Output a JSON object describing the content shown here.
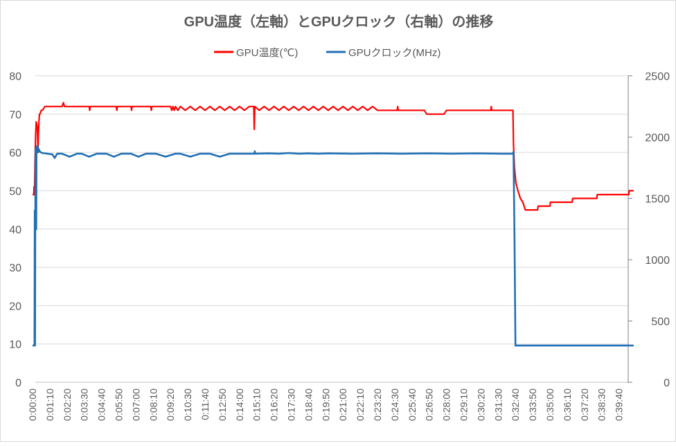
{
  "chart_data": {
    "type": "line",
    "title": "GPU温度（左軸）とGPUクロック（右軸）の推移",
    "legend_position": "top",
    "grid": true,
    "y_left": {
      "min": 0,
      "max": 80,
      "ticks": [
        0,
        10,
        20,
        30,
        40,
        50,
        60,
        70,
        80
      ]
    },
    "y_right": {
      "min": 0,
      "max": 2500,
      "ticks": [
        0,
        500,
        1000,
        1500,
        2000,
        2500
      ]
    },
    "x_range_seconds": [
      0,
      2440
    ],
    "x_tick_labels": [
      "0:00:00",
      "0:01:10",
      "0:02:20",
      "0:03:30",
      "0:04:40",
      "0:05:50",
      "0:07:00",
      "0:08:10",
      "0:09:20",
      "0:10:30",
      "0:11:40",
      "0:12:50",
      "0:14:00",
      "0:15:10",
      "0:16:20",
      "0:17:30",
      "0:18:40",
      "0:19:50",
      "0:21:00",
      "0:22:10",
      "0:23:20",
      "0:24:30",
      "0:25:40",
      "0:26:50",
      "0:28:00",
      "0:29:10",
      "0:30:20",
      "0:31:30",
      "0:32:40",
      "0:33:50",
      "0:35:00",
      "0:36:10",
      "0:37:20",
      "0:38:30",
      "0:39:40"
    ],
    "series": [
      {
        "name": "GPU温度(℃)",
        "axis": "left",
        "color": "#ff0000",
        "t": [
          0,
          5,
          6,
          8,
          10,
          12,
          15,
          18,
          20,
          22,
          24,
          26,
          28,
          30,
          35,
          40,
          50,
          60,
          120,
          125,
          130,
          230,
          232,
          234,
          340,
          342,
          344,
          400,
          402,
          404,
          480,
          482,
          484,
          560,
          565,
          570,
          575,
          580,
          590,
          600,
          620,
          640,
          660,
          680,
          700,
          720,
          740,
          760,
          780,
          800,
          820,
          840,
          860,
          880,
          898,
          900,
          902,
          920,
          940,
          960,
          980,
          1000,
          1020,
          1040,
          1060,
          1080,
          1100,
          1120,
          1140,
          1160,
          1180,
          1200,
          1220,
          1240,
          1260,
          1280,
          1300,
          1320,
          1340,
          1360,
          1380,
          1400,
          1480,
          1482,
          1484,
          1590,
          1600,
          1670,
          1680,
          1860,
          1862,
          1864,
          1950,
          1952,
          1956,
          1962,
          1970,
          1980,
          1990,
          2000,
          2050,
          2052,
          2100,
          2102,
          2190,
          2192,
          2290,
          2292,
          2420,
          2422,
          2440
        ],
        "values": [
          49,
          49,
          51,
          49,
          58,
          64,
          68,
          67,
          66,
          60,
          65,
          68,
          70,
          70,
          71,
          71,
          72,
          72,
          72,
          73,
          72,
          72,
          71,
          72,
          72,
          71,
          72,
          72,
          71,
          72,
          72,
          71,
          72,
          72,
          71,
          72,
          71,
          72,
          71,
          72,
          71,
          72,
          71,
          72,
          71,
          72,
          71,
          72,
          71,
          72,
          71,
          72,
          71,
          72,
          72,
          66,
          72,
          71,
          72,
          71,
          72,
          71,
          72,
          71,
          72,
          71,
          72,
          71,
          72,
          71,
          72,
          71,
          72,
          71,
          72,
          71,
          72,
          71,
          72,
          71,
          72,
          71,
          71,
          72,
          71,
          71,
          70,
          70,
          71,
          71,
          72,
          71,
          71,
          62,
          56,
          52,
          50,
          48,
          47,
          45,
          45,
          46,
          46,
          47,
          47,
          48,
          48,
          49,
          49,
          50,
          50
        ]
      },
      {
        "name": "GPUクロック(MHz)",
        "axis": "right",
        "color": "#1f6fb5",
        "t": [
          0,
          8,
          9,
          10,
          11,
          12,
          13,
          14,
          15,
          16,
          17,
          18,
          19,
          20,
          22,
          24,
          26,
          28,
          30,
          35,
          40,
          60,
          80,
          90,
          100,
          120,
          150,
          180,
          200,
          230,
          260,
          300,
          330,
          360,
          400,
          430,
          460,
          500,
          540,
          580,
          600,
          640,
          680,
          720,
          760,
          800,
          840,
          880,
          900,
          902,
          904,
          960,
          1000,
          1040,
          1080,
          1120,
          1160,
          1200,
          1300,
          1400,
          1500,
          1600,
          1700,
          1800,
          1900,
          1950,
          1952,
          1956,
          1960,
          2440
        ],
        "values": [
          300,
          300,
          1400,
          300,
          1200,
          1900,
          1350,
          1900,
          1250,
          1900,
          1920,
          1910,
          1930,
          1890,
          1920,
          1880,
          1900,
          1890,
          1880,
          1875,
          1870,
          1865,
          1860,
          1830,
          1865,
          1865,
          1840,
          1865,
          1865,
          1840,
          1865,
          1865,
          1840,
          1865,
          1865,
          1840,
          1865,
          1865,
          1840,
          1865,
          1865,
          1840,
          1865,
          1865,
          1840,
          1865,
          1865,
          1865,
          1865,
          1885,
          1865,
          1868,
          1865,
          1870,
          1865,
          1868,
          1865,
          1868,
          1865,
          1868,
          1865,
          1868,
          1865,
          1868,
          1865,
          1865,
          1880,
          1200,
          300,
          300
        ]
      }
    ]
  }
}
